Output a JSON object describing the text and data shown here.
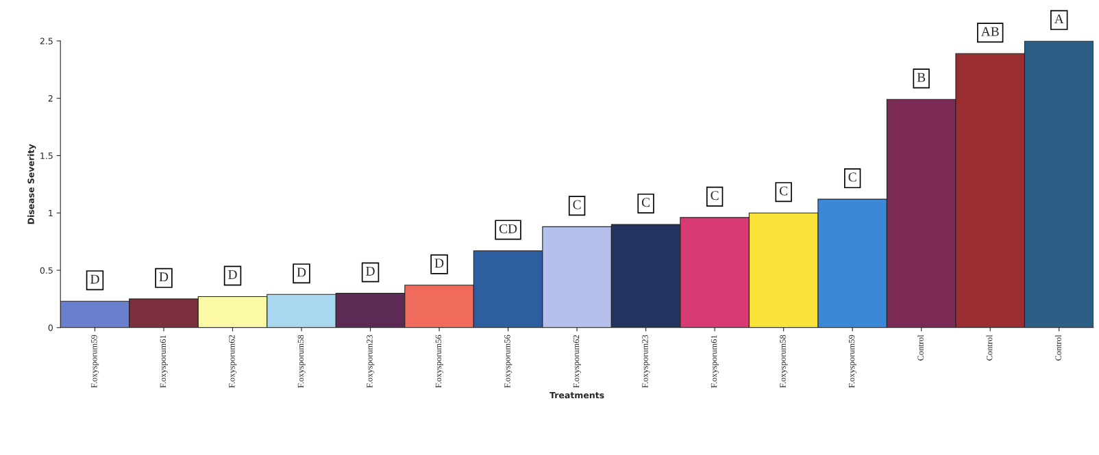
{
  "chart_data": {
    "type": "bar",
    "xlabel": "Treatments",
    "ylabel": "Disease Severity",
    "categories": [
      "F.oxysporum59",
      "F.oxysporum61",
      "F.oxysporum62",
      "F.oxysporum58",
      "F.oxysporum23",
      "F.oxysporum56",
      "F.oxysporum56",
      "F.oxysporum62",
      "F.oxysporum23",
      "F.oxysporum61",
      "F.oxysporum58",
      "F.oxysporum59",
      "Control",
      "Control",
      "Control"
    ],
    "values": [
      0.23,
      0.25,
      0.27,
      0.29,
      0.3,
      0.37,
      0.67,
      0.88,
      0.9,
      0.96,
      1.0,
      1.12,
      1.99,
      2.39,
      2.5
    ],
    "colors": [
      "#6b7fcf",
      "#7e2f3f",
      "#fbf8a6",
      "#a8d7ef",
      "#5c2a55",
      "#ef6b5c",
      "#2d5e9f",
      "#b5c0ec",
      "#243260",
      "#d83a74",
      "#f9e33a",
      "#3b88d8",
      "#7a2a55",
      "#9a2d2f",
      "#2c5f85"
    ],
    "ylim": [
      0,
      2.5
    ],
    "yticks": [
      0,
      0.5,
      1,
      1.5,
      2,
      2.5
    ],
    "grid": false,
    "annotations": [
      "D",
      "D",
      "D",
      "D",
      "D",
      "D",
      "CD",
      "C",
      "C",
      "C",
      "C",
      "C",
      "B",
      "AB",
      "A"
    ]
  }
}
